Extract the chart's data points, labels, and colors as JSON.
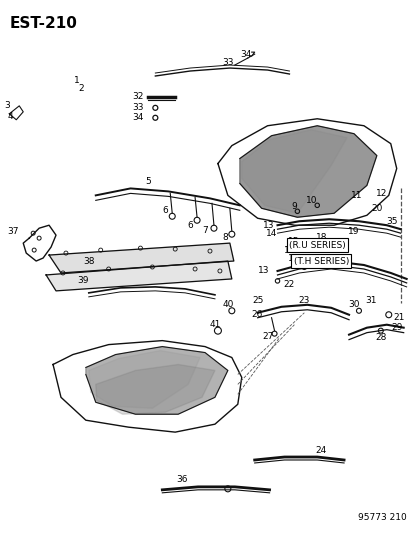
{
  "title": "EST-210",
  "footer": "95773 210",
  "bg_color": "#ffffff",
  "text_color": "#000000",
  "title_fontsize": 11,
  "label_fontsize": 6.5,
  "ru_series": "(R.U SERIES)",
  "th_series": "(T.H SERIES)"
}
